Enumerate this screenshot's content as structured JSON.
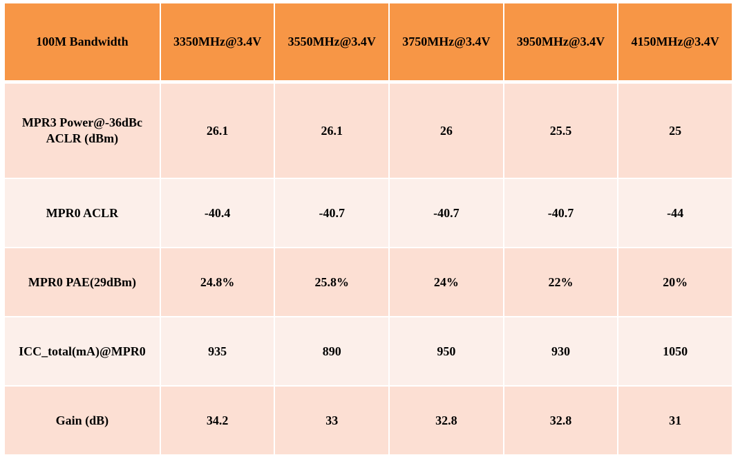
{
  "table": {
    "header": [
      "100M Bandwidth",
      "3350MHz@3.4V",
      "3550MHz@3.4V",
      "3750MHz@3.4V",
      "3950MHz@3.4V",
      "4150MHz@3.4V"
    ],
    "rows": [
      {
        "label_line1": "MPR3 Power@-36dBc",
        "label_line2": "ACLR (dBm)",
        "values": [
          "26.1",
          "26.1",
          "26",
          "25.5",
          "25"
        ]
      },
      {
        "label": "MPR0 ACLR",
        "values": [
          "-40.4",
          "-40.7",
          "-40.7",
          "-40.7",
          "-44"
        ]
      },
      {
        "label": "MPR0 PAE(29dBm)",
        "values": [
          "24.8%",
          "25.8%",
          "24%",
          "22%",
          "20%"
        ]
      },
      {
        "label": "ICC_total(mA)@MPR0",
        "values": [
          "935",
          "890",
          "950",
          "930",
          "1050"
        ]
      },
      {
        "label": "Gain (dB)",
        "values": [
          "34.2",
          "33",
          "32.8",
          "32.8",
          "31"
        ]
      }
    ]
  },
  "colors": {
    "header_bg": "#f79646",
    "row_odd_bg": "#fcdfd3",
    "row_even_bg": "#fcefea"
  }
}
